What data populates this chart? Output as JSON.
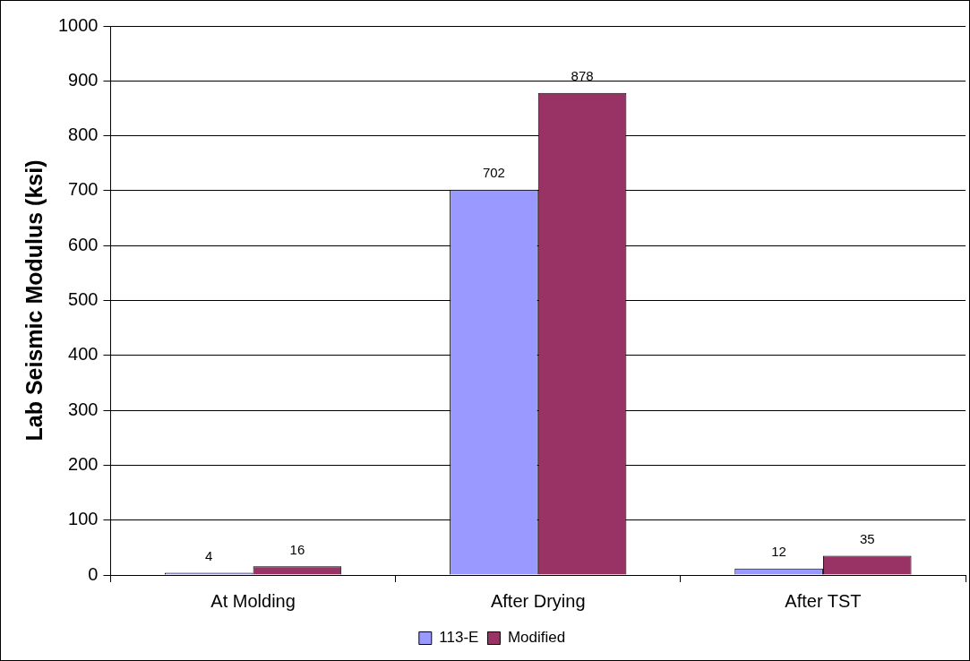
{
  "chart_data": {
    "type": "bar",
    "ylabel": "Lab Seismic Modulus (ksi)",
    "categories": [
      "At Molding",
      "After Drying",
      "After TST"
    ],
    "series": [
      {
        "name": "113-E",
        "color": "#9999ff",
        "values": [
          4,
          702,
          12
        ]
      },
      {
        "name": "Modified",
        "color": "#993366",
        "values": [
          16,
          878,
          35
        ]
      }
    ],
    "ylim": [
      0,
      1000
    ],
    "yticks": [
      0,
      100,
      200,
      300,
      400,
      500,
      600,
      700,
      800,
      900,
      1000
    ],
    "grid": "y",
    "legend": "bottom",
    "data_labels": true
  }
}
